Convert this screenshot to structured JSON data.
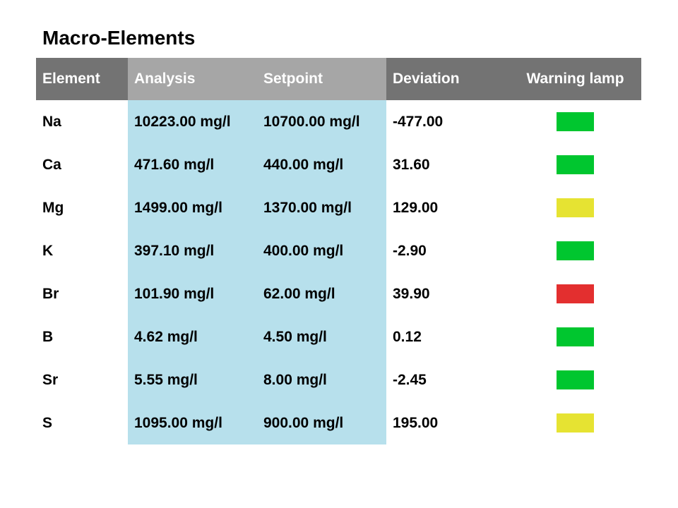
{
  "title": "Macro-Elements",
  "columns": {
    "element": "Element",
    "analysis": "Analysis",
    "setpoint": "Setpoint",
    "deviation": "Deviation",
    "warning_lamp": "Warning lamp"
  },
  "lamp_colors": {
    "green": "#00c62f",
    "yellow": "#e6e332",
    "red": "#e32f2f"
  },
  "rows": [
    {
      "element": "Na",
      "analysis": "10223.00 mg/l",
      "setpoint": "10700.00 mg/l",
      "deviation": "-477.00",
      "lamp": "green"
    },
    {
      "element": "Ca",
      "analysis": "471.60 mg/l",
      "setpoint": "440.00 mg/l",
      "deviation": "31.60",
      "lamp": "green"
    },
    {
      "element": "Mg",
      "analysis": "1499.00 mg/l",
      "setpoint": "1370.00 mg/l",
      "deviation": "129.00",
      "lamp": "yellow"
    },
    {
      "element": "K",
      "analysis": "397.10 mg/l",
      "setpoint": "400.00 mg/l",
      "deviation": "-2.90",
      "lamp": "green"
    },
    {
      "element": "Br",
      "analysis": "101.90 mg/l",
      "setpoint": "62.00 mg/l",
      "deviation": "39.90",
      "lamp": "red"
    },
    {
      "element": "B",
      "analysis": "4.62 mg/l",
      "setpoint": "4.50 mg/l",
      "deviation": "0.12",
      "lamp": "green"
    },
    {
      "element": "Sr",
      "analysis": "5.55 mg/l",
      "setpoint": "8.00 mg/l",
      "deviation": "-2.45",
      "lamp": "green"
    },
    {
      "element": "S",
      "analysis": "1095.00 mg/l",
      "setpoint": "900.00 mg/l",
      "deviation": "195.00",
      "lamp": "yellow"
    }
  ]
}
